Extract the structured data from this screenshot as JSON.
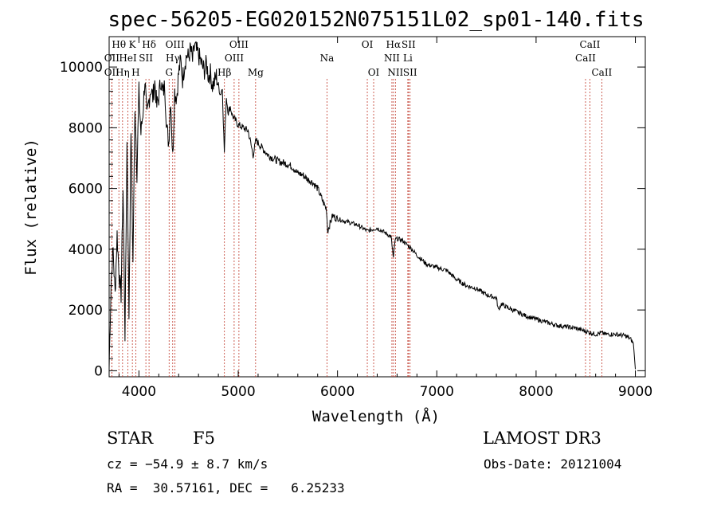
{
  "chart_data": {
    "type": "line",
    "title": "spec-56205-EG020152N075151L02_sp01-140.fits",
    "xlabel": "Wavelength (Å)",
    "ylabel": "Flux (relative)",
    "xlim": [
      3700,
      9100
    ],
    "ylim": [
      -200,
      11000
    ],
    "xticks": [
      4000,
      5000,
      6000,
      7000,
      8000,
      9000
    ],
    "yticks": [
      0,
      2000,
      4000,
      6000,
      8000,
      10000
    ],
    "grid": false,
    "series": [
      {
        "x": [
          3700,
          3720,
          3740,
          3760,
          3780,
          3800,
          3820,
          3840,
          3860,
          3880,
          3900,
          3920,
          3940,
          3960,
          3980,
          4000,
          4020,
          4040,
          4060,
          4080,
          4100,
          4120,
          4140,
          4160,
          4180,
          4200,
          4220,
          4240,
          4260,
          4280,
          4300,
          4320,
          4340,
          4360,
          4380,
          4400,
          4420,
          4440,
          4460,
          4480,
          4500,
          4520,
          4540,
          4560,
          4580,
          4600,
          4620,
          4640,
          4660,
          4680,
          4700,
          4720,
          4740,
          4760,
          4780,
          4800,
          4820,
          4840,
          4860,
          4880,
          4900,
          4920,
          4940,
          4960,
          4980,
          5000,
          5050,
          5100,
          5150,
          5180,
          5200,
          5250,
          5300,
          5350,
          5400,
          5450,
          5500,
          5550,
          5600,
          5650,
          5700,
          5750,
          5800,
          5850,
          5890,
          5900,
          5950,
          6000,
          6100,
          6200,
          6300,
          6400,
          6500,
          6540,
          6563,
          6580,
          6600,
          6650,
          6700,
          6750,
          6800,
          6900,
          7000,
          7100,
          7200,
          7300,
          7400,
          7500,
          7600,
          7620,
          7650,
          7700,
          7800,
          7900,
          8000,
          8100,
          8200,
          8300,
          8400,
          8500,
          8550,
          8600,
          8650,
          8700,
          8800,
          8900,
          8950,
          8980,
          9000
        ],
        "values": [
          100,
          3000,
          4000,
          2500,
          4500,
          3200,
          2500,
          6000,
          1200,
          7500,
          1800,
          8000,
          3500,
          8800,
          6500,
          9200,
          7800,
          8500,
          9600,
          8300,
          8900,
          9300,
          9000,
          9500,
          8700,
          9000,
          9600,
          9100,
          9400,
          8000,
          7500,
          9000,
          7000,
          9200,
          9000,
          9800,
          10200,
          9600,
          10100,
          10400,
          10300,
          10600,
          10200,
          10700,
          10500,
          10400,
          10200,
          10000,
          9900,
          10100,
          9700,
          9800,
          9400,
          9500,
          9700,
          9400,
          9100,
          9300,
          7200,
          9000,
          8500,
          8700,
          8400,
          8300,
          8200,
          8100,
          8000,
          7900,
          7100,
          7600,
          7500,
          7300,
          7100,
          7000,
          6900,
          6850,
          6800,
          6700,
          6500,
          6450,
          6300,
          6200,
          6000,
          5600,
          5300,
          4600,
          5100,
          5000,
          4900,
          4800,
          4600,
          4700,
          4500,
          4400,
          3700,
          4300,
          4350,
          4300,
          4150,
          4000,
          3800,
          3500,
          3400,
          3300,
          3000,
          2800,
          2700,
          2500,
          2400,
          2000,
          2200,
          2100,
          1950,
          1800,
          1700,
          1600,
          1500,
          1450,
          1400,
          1300,
          1250,
          1200,
          1250,
          1200,
          1200,
          1150,
          1050,
          900,
          50
        ]
      }
    ],
    "lines": [
      {
        "label": "OII",
        "x": 3727,
        "row": 2
      },
      {
        "label": "OII",
        "x": 3727,
        "row": 3
      },
      {
        "label": "Hθ",
        "x": 3798,
        "row": 1
      },
      {
        "label": "Hη",
        "x": 3835,
        "row": 3
      },
      {
        "label": "HeI",
        "x": 3889,
        "row": 2
      },
      {
        "label": "K",
        "x": 3934,
        "row": 1
      },
      {
        "label": "H",
        "x": 3968,
        "row": 3
      },
      {
        "label": "SII",
        "x": 4070,
        "row": 2
      },
      {
        "label": "Hδ",
        "x": 4102,
        "row": 1
      },
      {
        "label": "G",
        "x": 4304,
        "row": 3
      },
      {
        "label": "OIII",
        "x": 4363,
        "row": 1
      },
      {
        "label": "Hγ",
        "x": 4340,
        "row": 2
      },
      {
        "label": "Hβ",
        "x": 4861,
        "row": 3
      },
      {
        "label": "OIII",
        "x": 4959,
        "row": 2
      },
      {
        "label": "OIII",
        "x": 5007,
        "row": 1
      },
      {
        "label": "Mg",
        "x": 5175,
        "row": 3
      },
      {
        "label": "Na",
        "x": 5894,
        "row": 2
      },
      {
        "label": "OI",
        "x": 6300,
        "row": 1
      },
      {
        "label": "OI",
        "x": 6364,
        "row": 3
      },
      {
        "label": "NII",
        "x": 6548,
        "row": 2
      },
      {
        "label": "Hα",
        "x": 6563,
        "row": 1
      },
      {
        "label": "NII",
        "x": 6583,
        "row": 3
      },
      {
        "label": "SII",
        "x": 6716,
        "row": 1
      },
      {
        "label": "Li",
        "x": 6708,
        "row": 2
      },
      {
        "label": "SII",
        "x": 6731,
        "row": 3
      },
      {
        "label": "CaII",
        "x": 8498,
        "row": 2
      },
      {
        "label": "CaII",
        "x": 8542,
        "row": 1
      },
      {
        "label": "CaII",
        "x": 8662,
        "row": 3
      }
    ]
  },
  "footer": {
    "class": "STAR",
    "subclass": "F5",
    "cz": "cz = −54.9 ± 8.7 km/s",
    "radec": "RA =  30.57161, DEC =   6.25233",
    "survey": "LAMOST DR3",
    "obsdate": "Obs-Date: 20121004"
  }
}
